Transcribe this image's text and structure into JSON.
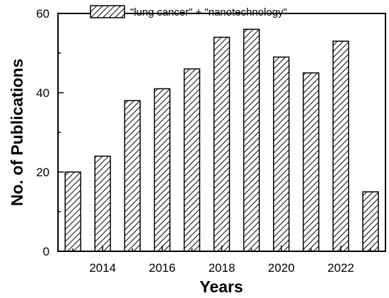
{
  "chart_data": {
    "type": "bar",
    "categories": [
      2013,
      2014,
      2015,
      2016,
      2017,
      2018,
      2019,
      2020,
      2021,
      2022,
      2023
    ],
    "series": [
      {
        "name": "\"lung cancer\" + \"nanotechnology\"",
        "values": [
          20,
          24,
          38,
          41,
          46,
          54,
          56,
          49,
          45,
          53,
          15
        ]
      }
    ],
    "xlabel": "Years",
    "ylabel": "No. of Publications",
    "xticks": [
      "2014",
      "2016",
      "2018",
      "2020",
      "2022"
    ],
    "yticks": [
      "0",
      "20",
      "40",
      "60"
    ],
    "ylim": [
      0,
      60
    ],
    "xlim": [
      2012.5,
      2023.5
    ],
    "grid": false,
    "legend": "top",
    "bar_pattern": "diagonal-hatch",
    "bar_color": "#ffffff",
    "line_color": "#000000"
  }
}
